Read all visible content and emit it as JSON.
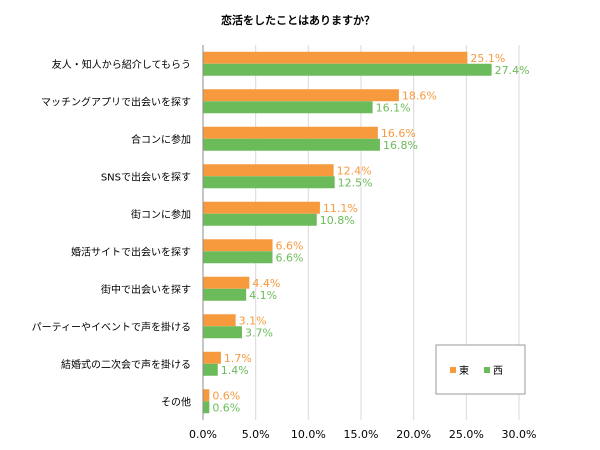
{
  "chart_data": {
    "type": "bar",
    "orientation": "horizontal",
    "title": "恋活をしたことはありますか？",
    "categories": [
      "友人・知人から紹介してもらう",
      "マッチングアプリで出会いを探す",
      "合コンに参加",
      "SNSで出会いを探す",
      "街コンに参加",
      "婚活サイトで出会いを探す",
      "街中で出会いを探す",
      "パーティーやイベントで声を掛ける",
      "結婚式の二次会で声を掛ける",
      "その他"
    ],
    "series": [
      {
        "name": "東",
        "color": "#F79A3E",
        "values": [
          25.1,
          18.6,
          16.6,
          12.4,
          11.1,
          6.6,
          4.4,
          3.1,
          1.7,
          0.6
        ],
        "labels": [
          "25.1%",
          "18.6%",
          "16.6%",
          "12.4%",
          "11.1%",
          "6.6%",
          "4.4%",
          "3.1%",
          "1.7%",
          "0.6%"
        ]
      },
      {
        "name": "西",
        "color": "#6CBB5A",
        "values": [
          27.4,
          16.1,
          16.8,
          12.5,
          10.8,
          6.6,
          4.1,
          3.7,
          1.4,
          0.6
        ],
        "labels": [
          "27.4%",
          "16.1%",
          "16.8%",
          "12.5%",
          "10.8%",
          "6.6%",
          "4.1%",
          "3.7%",
          "1.4%",
          "0.6%"
        ]
      }
    ],
    "xlim": [
      0,
      30
    ],
    "xticks": [
      0,
      5,
      10,
      15,
      20,
      25,
      30
    ],
    "xtick_labels": [
      "0.0%",
      "5.0%",
      "10.0%",
      "15.0%",
      "20.0%",
      "25.0%",
      "30.0%"
    ],
    "grid": true,
    "legend_position": "bottom-right",
    "xlabel": "",
    "ylabel": ""
  }
}
